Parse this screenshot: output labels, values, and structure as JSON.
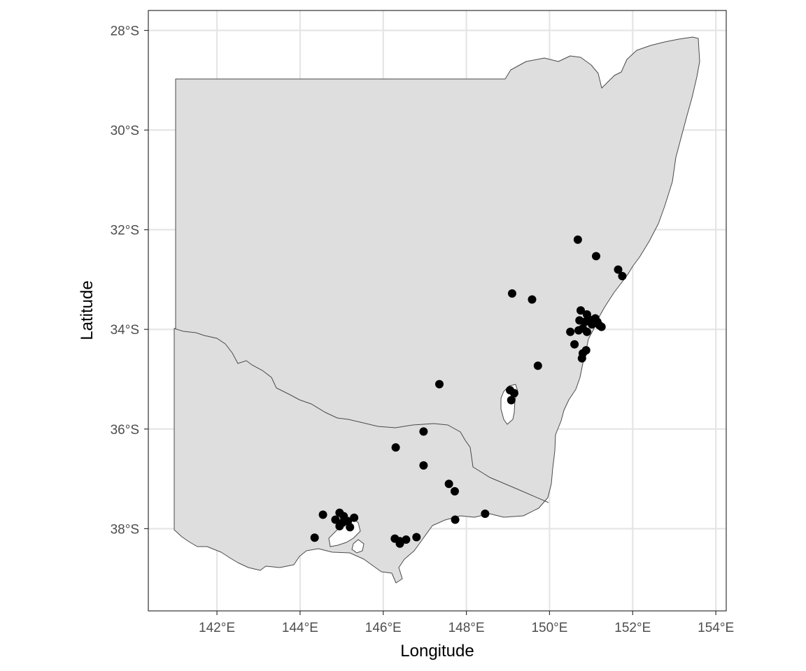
{
  "chart_data": {
    "type": "scatter",
    "title": "",
    "xlabel": "Longitude",
    "ylabel": "Latitude",
    "xlim": [
      140.35,
      154.25
    ],
    "ylim": [
      -39.65,
      -27.6
    ],
    "x_ticks": [
      142,
      144,
      146,
      148,
      150,
      152,
      154
    ],
    "x_tick_labels": [
      "142°E",
      "144°E",
      "146°E",
      "148°E",
      "150°E",
      "152°E",
      "154°E"
    ],
    "y_ticks": [
      -28,
      -30,
      -32,
      -34,
      -36,
      -38
    ],
    "y_tick_labels": [
      "28°S",
      "30°S",
      "32°S",
      "34°S",
      "36°S",
      "38°S"
    ],
    "grid": true,
    "legend": "none",
    "colors": {
      "region_fill": "#dedede",
      "region_border": "#4a4a4a",
      "points": "#000000",
      "grid": "#e5e5e5"
    },
    "points": {
      "x": [
        150.68,
        151.12,
        151.65,
        151.75,
        149.1,
        149.58,
        150.75,
        150.9,
        150.72,
        150.85,
        150.95,
        151.02,
        151.1,
        151.2,
        151.25,
        150.7,
        150.8,
        150.9,
        151.05,
        151.15,
        150.5,
        150.6,
        150.88,
        150.8,
        150.78,
        149.72,
        147.35,
        149.05,
        149.15,
        149.08,
        146.97,
        146.3,
        146.97,
        147.58,
        147.72,
        148.45,
        147.73,
        144.55,
        144.95,
        144.85,
        145.05,
        145.15,
        145.3,
        144.95,
        145.02,
        145.2,
        144.35,
        146.28,
        146.4,
        146.55,
        146.4,
        146.8
      ],
      "y": [
        -32.2,
        -32.53,
        -32.8,
        -32.93,
        -33.28,
        -33.4,
        -33.62,
        -33.7,
        -33.82,
        -33.85,
        -33.8,
        -33.9,
        -33.78,
        -33.92,
        -33.95,
        -34.02,
        -33.98,
        -34.05,
        -33.88,
        -33.85,
        -34.05,
        -34.3,
        -34.42,
        -34.48,
        -34.58,
        -34.73,
        -35.1,
        -35.22,
        -35.28,
        -35.42,
        -36.05,
        -36.37,
        -36.73,
        -37.1,
        -37.25,
        -37.7,
        -37.82,
        -37.72,
        -37.68,
        -37.82,
        -37.75,
        -37.85,
        -37.78,
        -37.95,
        -37.88,
        -37.97,
        -38.18,
        -38.2,
        -38.25,
        -38.22,
        -38.3,
        -38.17
      ]
    }
  }
}
